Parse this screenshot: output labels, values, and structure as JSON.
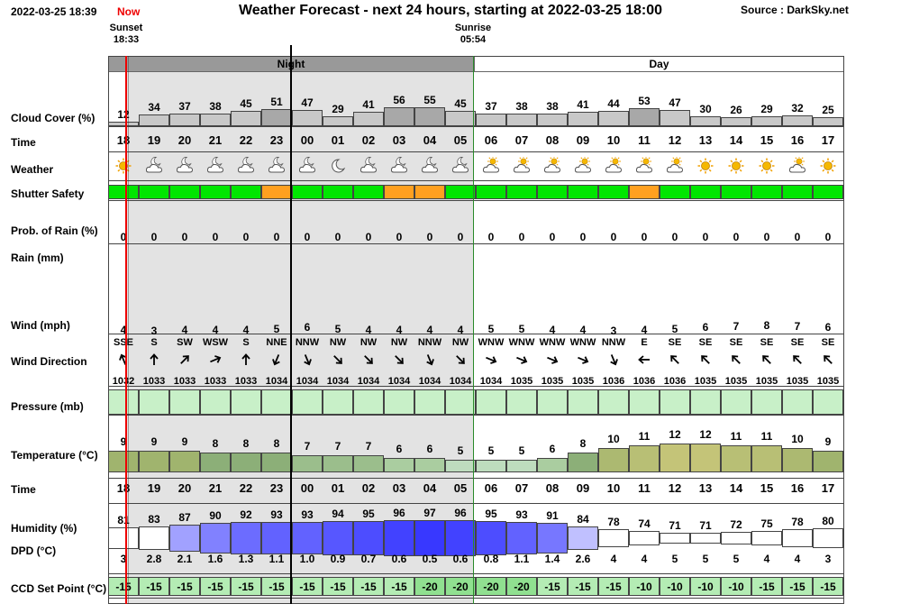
{
  "header": {
    "datetime": "2022-03-25 18:39",
    "now_label": "Now",
    "title": "Weather Forecast - next 24 hours, starting at 2022-03-25 18:00",
    "source": "Source : DarkSky.net"
  },
  "sun": {
    "sunset_label": "Sunset",
    "sunset_time": "18:33",
    "sunrise_label": "Sunrise",
    "sunrise_time": "05:54"
  },
  "periods": {
    "night": "Night",
    "day": "Day"
  },
  "row_labels": {
    "cloud": "Cloud Cover (%)",
    "time": "Time",
    "weather": "Weather",
    "shutter": "Shutter Safety",
    "prob_rain": "Prob. of Rain (%)",
    "rain": "Rain (mm)",
    "wind": "Wind (mph)",
    "wind_dir": "Wind Direction",
    "pressure": "Pressure (mb)",
    "temperature": "Temperature (°C)",
    "time2": "Time",
    "humidity": "Humidity (%)",
    "dpd": "DPD (°C)",
    "ccd": "CCD Set Point (°C)"
  },
  "colors": {
    "night_bg": "#e3e3e3",
    "night_header": "#999999",
    "green": "#00e600",
    "orange": "#ffa020",
    "pressure": "#c8f0c8",
    "ccd_green": "#b4ecb4",
    "now_line": "#ee0000",
    "sun_line": "#2a8a2a"
  },
  "chart_data": {
    "type": "table",
    "hours": [
      "18",
      "19",
      "20",
      "21",
      "22",
      "23",
      "00",
      "01",
      "02",
      "03",
      "04",
      "05",
      "06",
      "07",
      "08",
      "09",
      "10",
      "11",
      "12",
      "13",
      "14",
      "15",
      "16",
      "17"
    ],
    "cloud_cover": [
      12,
      34,
      37,
      38,
      45,
      51,
      47,
      29,
      41,
      56,
      55,
      45,
      37,
      38,
      38,
      41,
      44,
      53,
      47,
      30,
      26,
      29,
      32,
      25
    ],
    "weather_icons": [
      "sun",
      "moon-cloud",
      "moon-cloud",
      "moon-cloud",
      "moon-cloud",
      "moon-cloud",
      "moon-cloud",
      "moon",
      "moon-cloud",
      "moon-cloud",
      "moon-cloud",
      "moon-cloud",
      "sun-cloud",
      "sun-cloud",
      "sun-cloud",
      "sun-cloud",
      "sun-cloud",
      "sun-cloud",
      "sun-cloud",
      "sun",
      "sun",
      "sun",
      "sun-cloud",
      "sun"
    ],
    "shutter_safety": [
      "green",
      "green",
      "green",
      "green",
      "green",
      "orange",
      "green",
      "green",
      "green",
      "orange",
      "orange",
      "green",
      "green",
      "green",
      "green",
      "green",
      "green",
      "orange",
      "green",
      "green",
      "green",
      "green",
      "green",
      "green"
    ],
    "prob_rain": [
      0,
      0,
      0,
      0,
      0,
      0,
      0,
      0,
      0,
      0,
      0,
      0,
      0,
      0,
      0,
      0,
      0,
      0,
      0,
      0,
      0,
      0,
      0,
      0
    ],
    "wind_mph": [
      4,
      3,
      4,
      4,
      4,
      5,
      6,
      5,
      4,
      4,
      4,
      4,
      5,
      5,
      4,
      4,
      3,
      4,
      5,
      6,
      7,
      8,
      7,
      6
    ],
    "wind_dir": [
      "SSE",
      "S",
      "SW",
      "WSW",
      "S",
      "NNE",
      "NNW",
      "NW",
      "NW",
      "NW",
      "NNW",
      "NW",
      "WNW",
      "WNW",
      "WNW",
      "WNW",
      "NNW",
      "E",
      "SE",
      "SE",
      "SE",
      "SE",
      "SE",
      "SE"
    ],
    "pressure_mb": [
      1032,
      1033,
      1033,
      1033,
      1033,
      1034,
      1034,
      1034,
      1034,
      1034,
      1034,
      1034,
      1034,
      1035,
      1035,
      1035,
      1036,
      1036,
      1036,
      1035,
      1035,
      1035,
      1035,
      1035
    ],
    "temperature_c": [
      9,
      9,
      9,
      8,
      8,
      8,
      7,
      7,
      7,
      6,
      6,
      5,
      5,
      5,
      6,
      8,
      10,
      11,
      12,
      12,
      11,
      11,
      10,
      9
    ],
    "humidity_pct": [
      81,
      83,
      87,
      90,
      92,
      93,
      93,
      94,
      95,
      96,
      97,
      96,
      95,
      93,
      91,
      84,
      78,
      74,
      71,
      71,
      72,
      75,
      78,
      80
    ],
    "dpd_c": [
      3,
      2.8,
      2.1,
      1.6,
      1.3,
      1.1,
      1.0,
      0.9,
      0.7,
      0.6,
      0.5,
      0.6,
      0.8,
      1.1,
      1.4,
      2.6,
      4,
      4,
      5,
      5,
      5,
      4,
      4,
      3
    ],
    "dpd_labels": [
      "3",
      "2.8",
      "2.1",
      "1.6",
      "1.3",
      "1.1",
      "1.0",
      "0.9",
      "0.7",
      "0.6",
      "0.5",
      "0.6",
      "0.8",
      "1.1",
      "1.4",
      "2.6",
      "4",
      "4",
      "5",
      "5",
      "5",
      "4",
      "4",
      "3"
    ],
    "ccd_setpoint_c": [
      -15,
      -15,
      -15,
      -15,
      -15,
      -15,
      -15,
      -15,
      -15,
      -15,
      -20,
      -20,
      -20,
      -20,
      -15,
      -15,
      -15,
      -10,
      -10,
      -10,
      -10,
      -15,
      -15,
      -15
    ]
  }
}
